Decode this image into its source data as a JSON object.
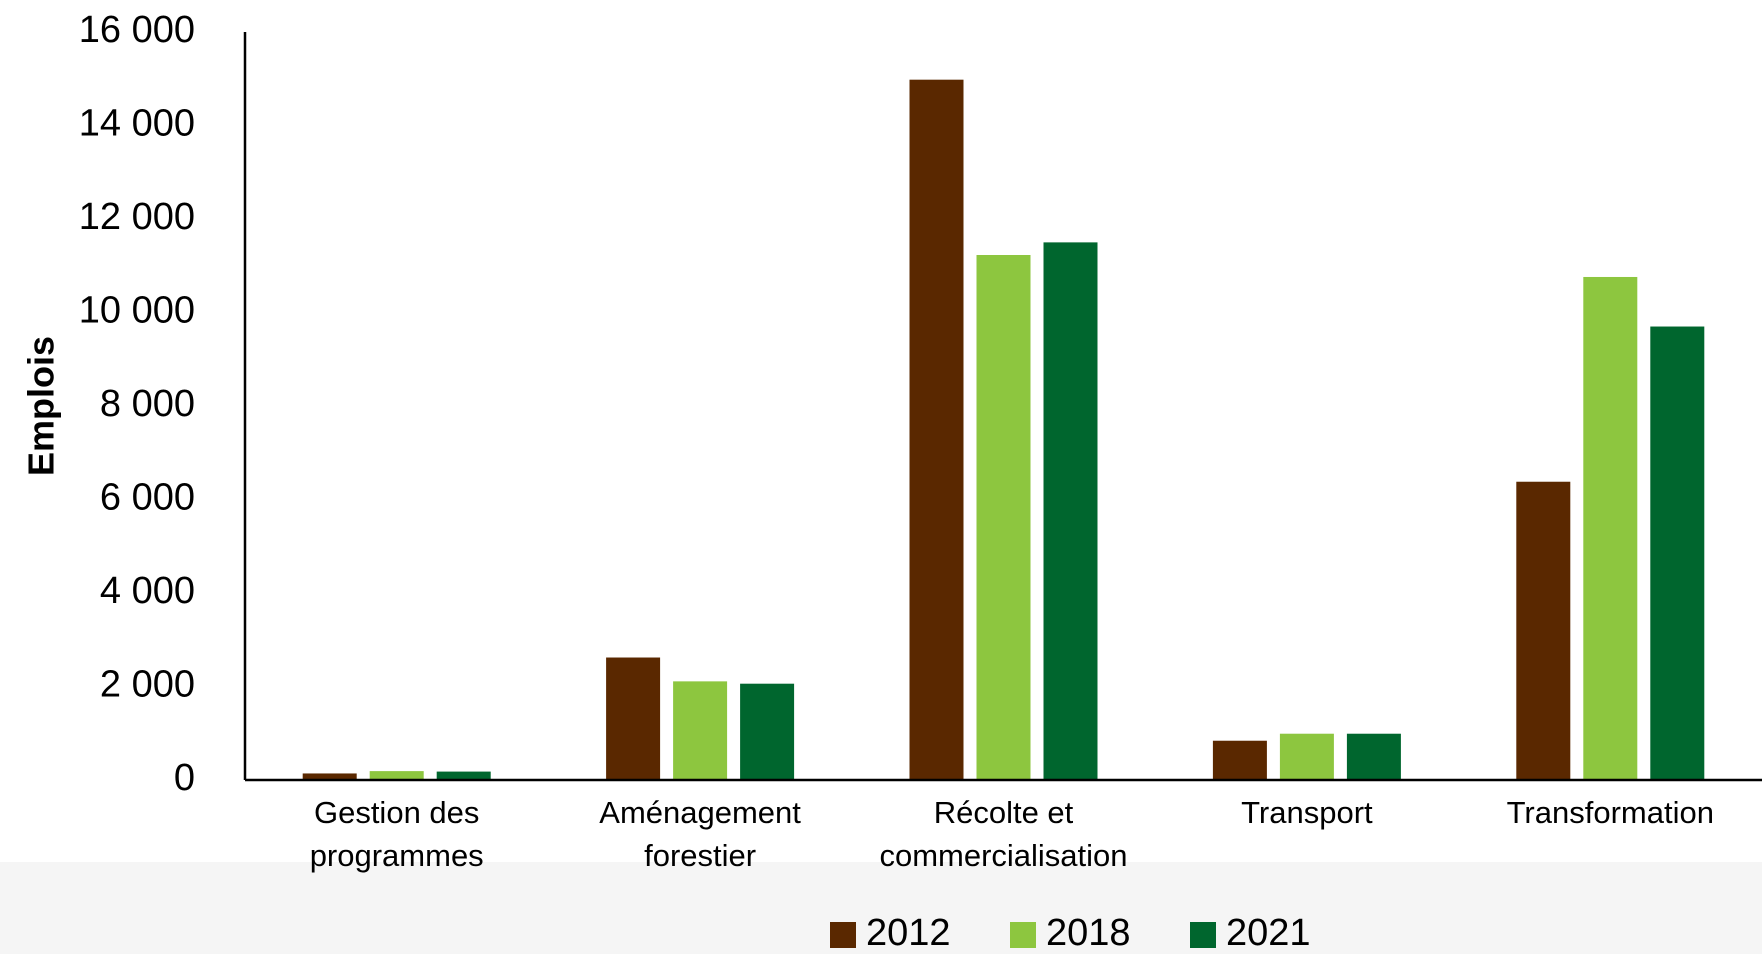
{
  "chart_data": {
    "type": "bar",
    "title": "",
    "xlabel": "",
    "ylabel": "Emplois",
    "ylim": [
      0,
      16000
    ],
    "yticks": [
      0,
      2000,
      4000,
      6000,
      8000,
      10000,
      12000,
      14000,
      16000
    ],
    "ytick_labels": [
      "0",
      "2 000",
      "4 000",
      "6 000",
      "8 000",
      "10 000",
      "12 000",
      "14 000",
      "16 000"
    ],
    "categories": [
      [
        "Gestion des",
        "programmes"
      ],
      [
        "Aménagement",
        "forestier"
      ],
      [
        "Récolte et",
        "commercialisation"
      ],
      [
        "Transport"
      ],
      [
        "Transformation"
      ]
    ],
    "series": [
      {
        "name": "2012",
        "color": "#5a2800",
        "values": [
          140,
          2620,
          14980,
          840,
          6380
        ]
      },
      {
        "name": "2018",
        "color": "#8dc63f",
        "values": [
          190,
          2110,
          11230,
          990,
          10760
        ]
      },
      {
        "name": "2021",
        "color": "#00662e",
        "values": [
          180,
          2060,
          11500,
          990,
          9700
        ]
      }
    ],
    "grid": false,
    "legend_position": "bottom-center"
  }
}
